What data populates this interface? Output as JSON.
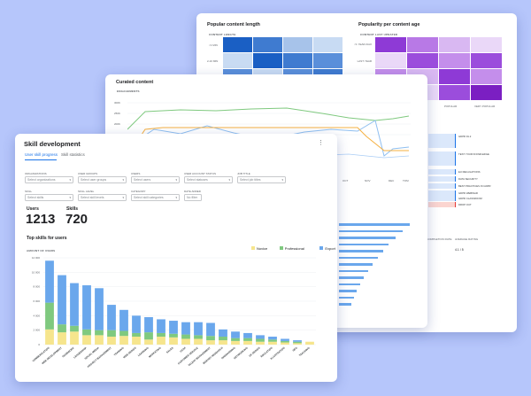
{
  "back": {
    "left_title": "Popular content length",
    "left_caption": "CONTENT LENGTH",
    "left_row_labels": [
      "<1 MIN",
      "2-10 MIN"
    ],
    "right_title": "Popularity per content age",
    "right_caption": "CONTENT LAST UPDATED",
    "right_row_labels": [
      "<1 YEAR AGO",
      "LAST YEAR",
      "2+ YEARS AGO"
    ],
    "right_col_labels": [
      "POPULAR",
      "VERY POPULAR"
    ],
    "list_items": [
      "GDPR 91.2",
      "TEST YOUR KNOWLEDGE",
      "EU REGULATIONS",
      "DATA SECURITY",
      "BEST PRACTICES IN GDPR",
      "GDPR WEBINAR",
      "GDPR CLASSROOM",
      "DROP OUT"
    ],
    "footer_labels": [
      "COMPLETION RATE",
      "AVERAGE RATING"
    ],
    "footer_value": "4.1 / 5",
    "colors": {
      "blue_dark": "#1a5fc4",
      "purple_dark": "#7b1fc2"
    }
  },
  "mid": {
    "title": "Curated content",
    "caption": "ENGAGEMENTS",
    "y_ticks": [
      "300K",
      "250K",
      "200K",
      "150K"
    ],
    "x_ticks": [
      "OCT",
      "NOV",
      "DEC",
      "TOM"
    ]
  },
  "front": {
    "title": "Skill development",
    "menu_icon": "more-vert-icon",
    "tabs": [
      {
        "label": "User skill progress",
        "active": true
      },
      {
        "label": "Skill statistics",
        "active": false
      }
    ],
    "filters": [
      {
        "label": "ORGANIZATIONS",
        "placeholder": "Select organizations"
      },
      {
        "label": "USER GROUPS",
        "placeholder": "Select user groups"
      },
      {
        "label": "USERS",
        "placeholder": "Select users"
      },
      {
        "label": "USER ACCOUNT STATUS",
        "placeholder": "Select statuses"
      },
      {
        "label": "JOB TITLE",
        "placeholder": "Select job titles"
      },
      {
        "label": "SKILL",
        "placeholder": "Select skills"
      },
      {
        "label": "SKILL LEVEL",
        "placeholder": "Select skill levels"
      },
      {
        "label": "CATEGORY",
        "placeholder": "Select skill categories"
      },
      {
        "label": "DATE ADDED",
        "placeholder": "No filter"
      }
    ],
    "stats": [
      {
        "label": "Users",
        "value": "1213"
      },
      {
        "label": "Skills",
        "value": "720"
      }
    ],
    "chart_title": "Top skills for users",
    "chart_data": {
      "type": "bar",
      "stacked": true,
      "ylabel": "AMOUNT OF USERS",
      "y_ticks": [
        "12 000",
        "10 000",
        "8 000",
        "6 000",
        "4 000",
        "2 000",
        "0"
      ],
      "ylim": [
        0,
        12000
      ],
      "legend_position": "top-right",
      "categories": [
        "COMMUNICATION",
        "WEB DEVELOPMENT",
        "TEAMWORK",
        "LEADERSHIP",
        "SOCIAL MEDIA",
        "PROJECT MANAGEMENT",
        "TRAINING",
        "WEB DESIGN",
        "LEARNING",
        "MARKETING",
        "SALES",
        "UX/UI",
        "CUSTOMER SERVICE",
        "TALENT MANAGEMENT",
        "MARKET RESEARCH",
        "ONBOARDING",
        "NETWORKING",
        "UX DESIGN",
        "EDUCATION",
        "ILLUSTRATION",
        "SEO",
        "TEACHING"
      ],
      "series": [
        {
          "name": "Novice",
          "color": "#f6e58d",
          "values": [
            2100,
            1700,
            1800,
            1300,
            1300,
            1100,
            1200,
            1100,
            700,
            1100,
            1000,
            800,
            800,
            600,
            600,
            500,
            500,
            400,
            400,
            300,
            200,
            400
          ]
        },
        {
          "name": "Professional",
          "color": "#7fc97f",
          "values": [
            3700,
            1100,
            800,
            800,
            700,
            900,
            700,
            500,
            1000,
            500,
            500,
            600,
            500,
            600,
            500,
            400,
            400,
            400,
            300,
            200,
            200,
            0
          ]
        },
        {
          "name": "Export",
          "color": "#6aa7ec",
          "values": [
            5800,
            6800,
            5900,
            6100,
            5800,
            3500,
            2900,
            2400,
            2100,
            1900,
            1800,
            1700,
            1800,
            1800,
            1000,
            900,
            700,
            500,
            400,
            300,
            200,
            0
          ]
        }
      ]
    }
  }
}
